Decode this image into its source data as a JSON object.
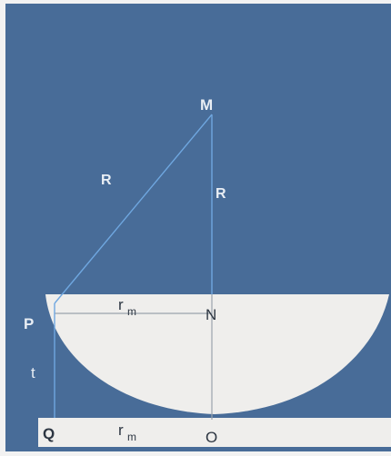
{
  "diagram": {
    "labels": {
      "M": "M",
      "N": "N",
      "O": "O",
      "P": "P",
      "Q": "Q",
      "R_hypotenuse": "R",
      "R_vertical": "R",
      "t": "t",
      "rm_top": "r",
      "rm_top_sub": "m",
      "rm_bottom": "r",
      "rm_bottom_sub": "m"
    },
    "colors": {
      "background": "#486c98",
      "page_edge": "#f2f2f2",
      "lens_fill": "#efeeec",
      "base_strip": "#efeeec",
      "line_on_blue": "#6fa7e0",
      "line_on_light": "#9aa3ad",
      "label_on_blue": "#e9eef4",
      "label_on_light": "#2d3642"
    }
  }
}
